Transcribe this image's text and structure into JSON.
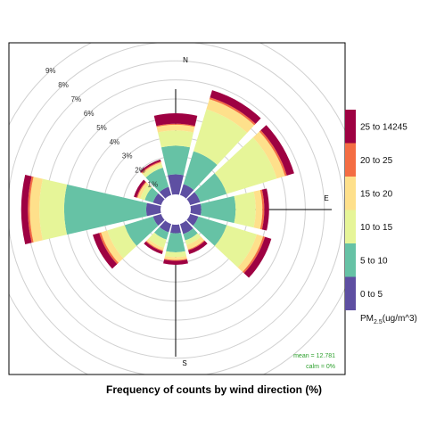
{
  "chart_data": {
    "type": "windrose",
    "title": "Frequency of counts by wind direction (%)",
    "radial_axis": {
      "unit": "%",
      "ticks": [
        1,
        2,
        3,
        4,
        5,
        6,
        7,
        8,
        9
      ],
      "tick_labels": [
        "1%",
        "2%",
        "3%",
        "4%",
        "5%",
        "6%",
        "7%",
        "8%",
        "9%"
      ]
    },
    "compass_labels": {
      "N": "N",
      "E": "E",
      "S": "S"
    },
    "legend": {
      "title_main": "PM",
      "title_sub": "2.5",
      "title_rest": "(ug/m^3)",
      "bins": [
        {
          "label": "0 to 5",
          "color": "#5e4fa2"
        },
        {
          "label": "5 to 10",
          "color": "#66c2a5"
        },
        {
          "label": "10 to 15",
          "color": "#e6f598"
        },
        {
          "label": "15 to 20",
          "color": "#fee08b"
        },
        {
          "label": "20 to 25",
          "color": "#f46d43"
        },
        {
          "label": "25 to 14245",
          "color": "#9e0142"
        }
      ]
    },
    "directions": [
      0,
      30,
      60,
      90,
      120,
      150,
      180,
      210,
      240,
      270,
      300,
      330
    ],
    "series": [
      {
        "name": "0 to 5",
        "values": [
          1.05,
          0.6,
          0.55,
          0.55,
          0.45,
          0.55,
          0.45,
          0.45,
          0.45,
          0.75,
          0.45,
          0.45
        ]
      },
      {
        "name": "5 to 10",
        "values": [
          1.5,
          1.8,
          1.45,
          1.8,
          1.55,
          0.35,
          1.0,
          0.4,
          1.55,
          4.3,
          0.45,
          1.05
        ]
      },
      {
        "name": "10 to 15",
        "values": [
          0.8,
          2.3,
          2.75,
          1.05,
          1.65,
          0.25,
          0.25,
          0.45,
          0.95,
          1.3,
          0.25,
          0.2
        ]
      },
      {
        "name": "15 to 20",
        "values": [
          0.3,
          0.55,
          0.45,
          0.35,
          0.35,
          0.25,
          0.15,
          0.15,
          0.35,
          0.5,
          0.15,
          0.1
        ]
      },
      {
        "name": "20 to 25",
        "values": [
          0.05,
          0.1,
          0.1,
          0.1,
          0.1,
          0.05,
          0.05,
          0.05,
          0.1,
          0.1,
          0.05,
          0.05
        ]
      },
      {
        "name": "25 to 14245",
        "values": [
          0.55,
          0.4,
          0.4,
          0.25,
          0.35,
          0.2,
          0.2,
          0.15,
          0.35,
          0.35,
          0.15,
          0.1
        ]
      }
    ],
    "stats": {
      "mean_label": "mean = 12.781",
      "calm_label": "calm = 0%"
    },
    "colors": {
      "stats_text": "#2ca02c",
      "grid": "#d0d0d0",
      "axis": "#000000",
      "panel_border": "#000000"
    }
  }
}
